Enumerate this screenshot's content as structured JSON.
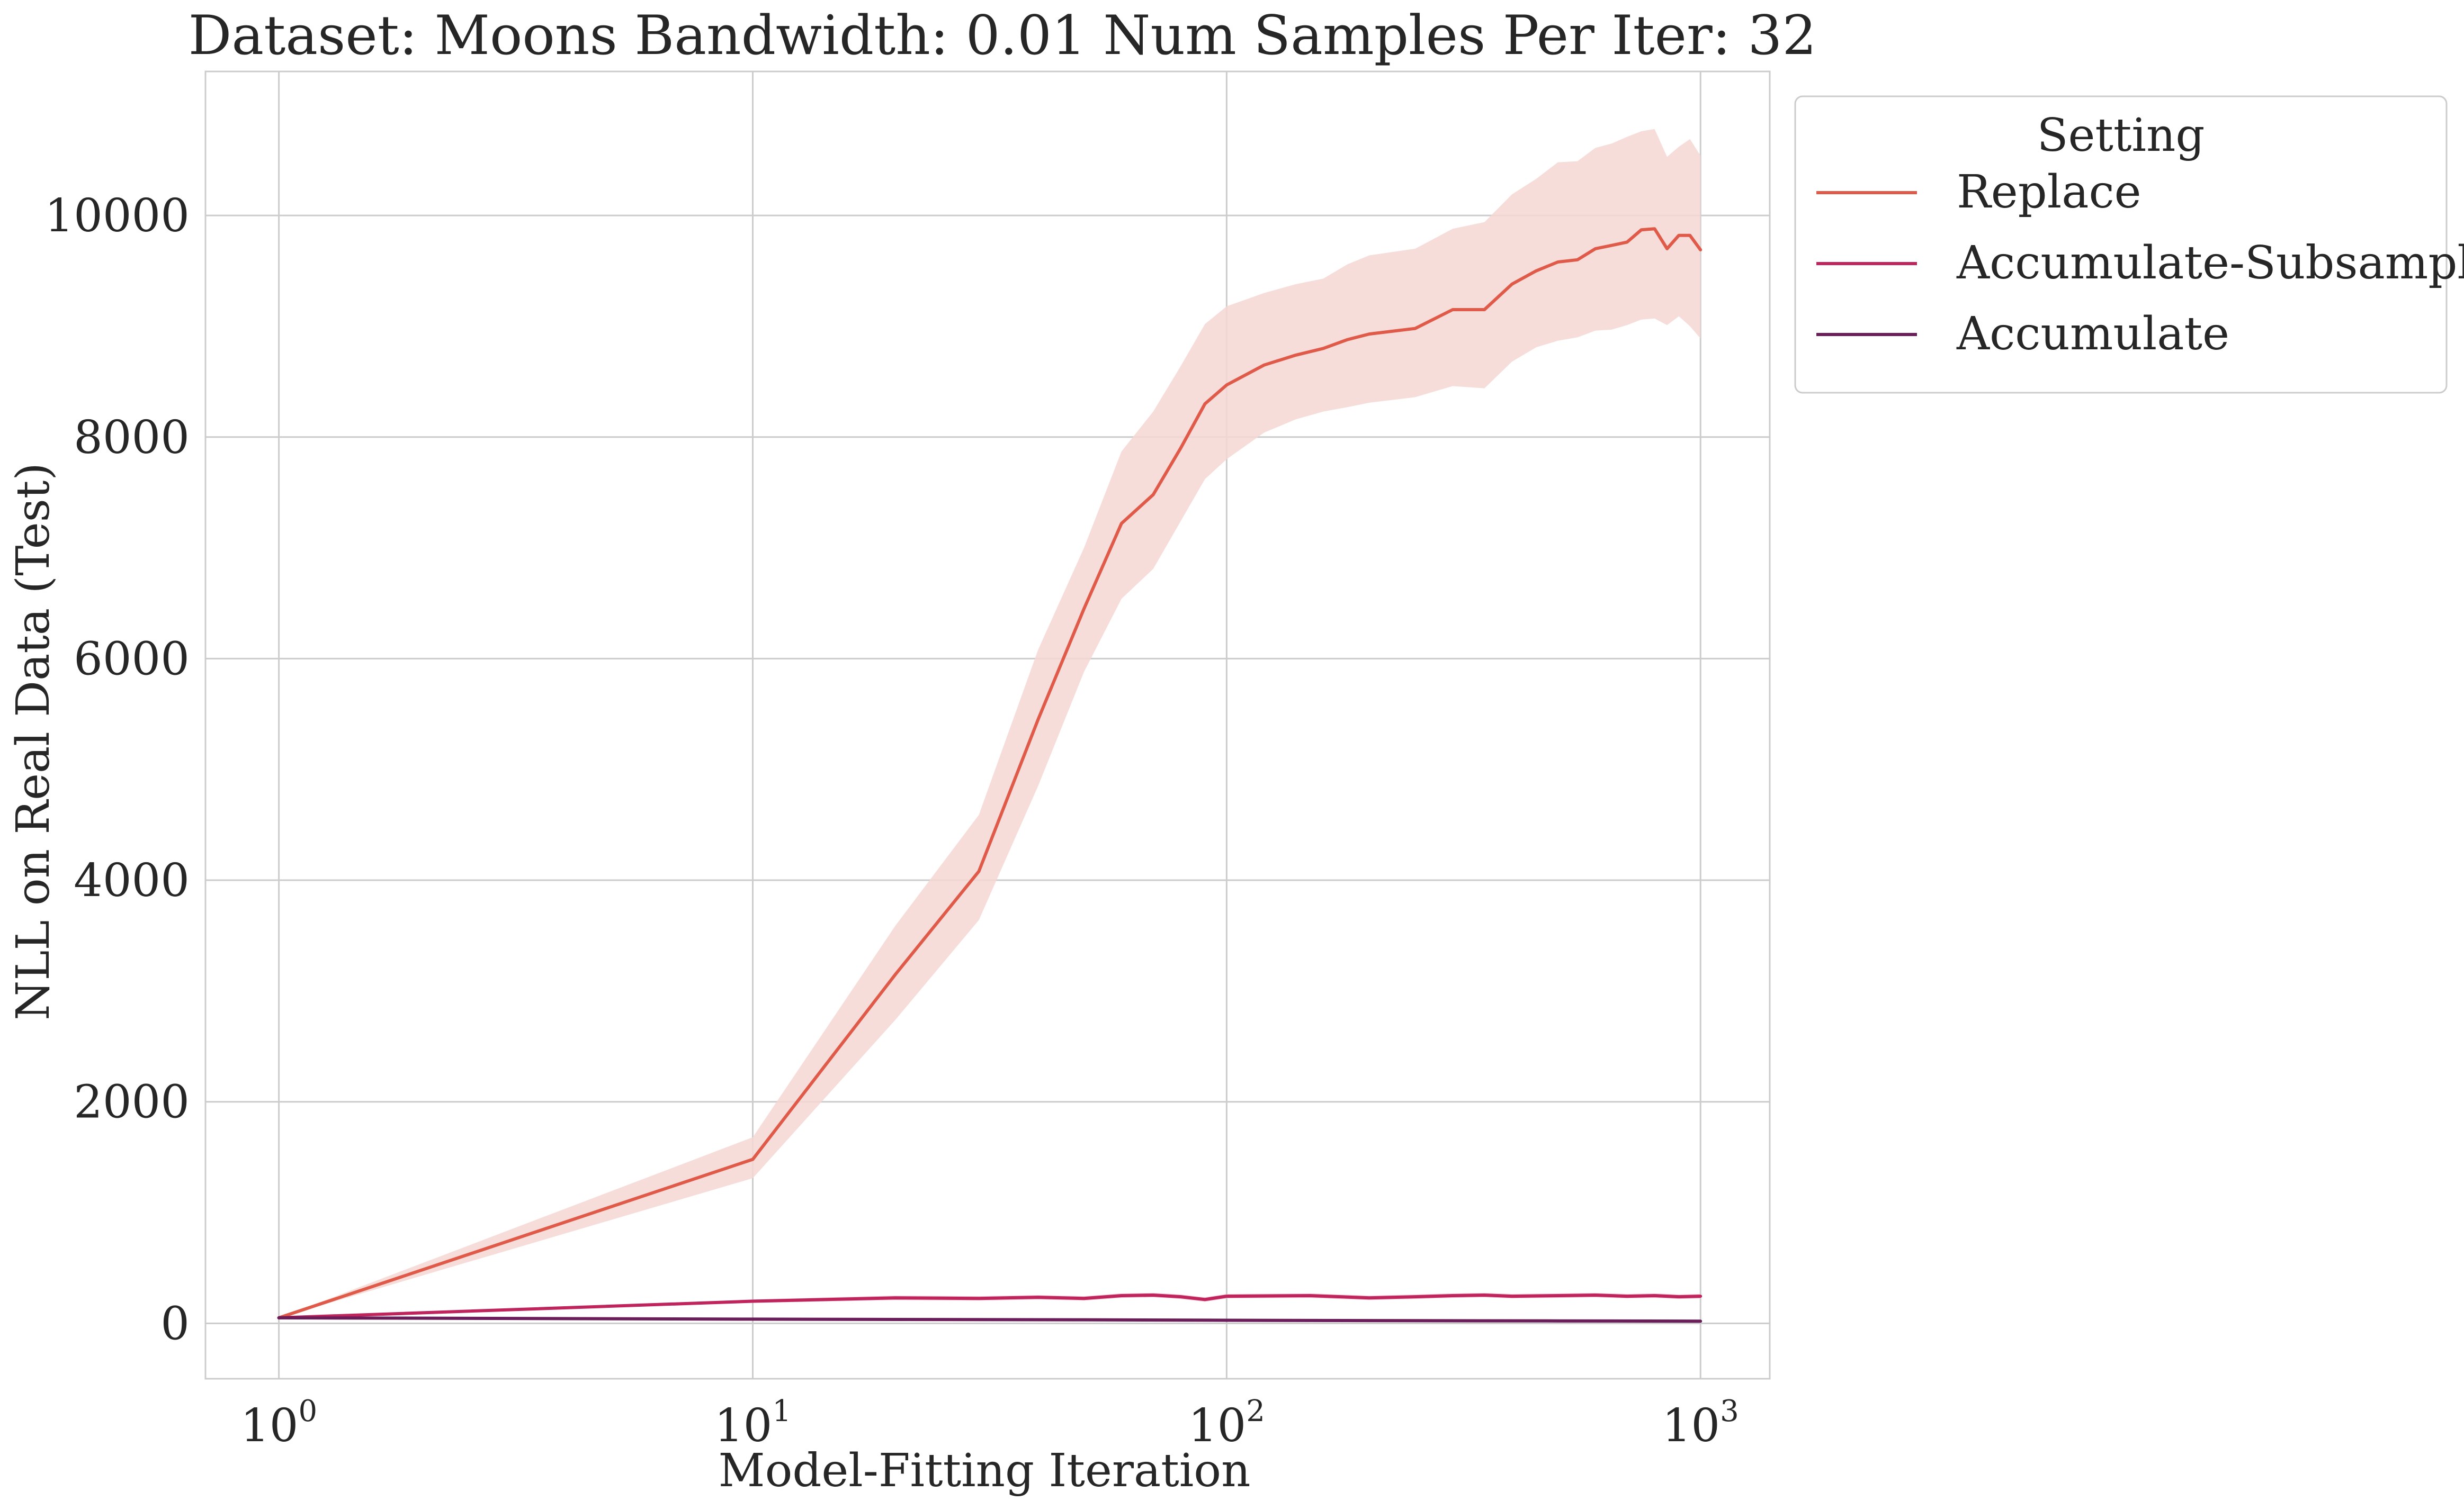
{
  "chart_data": {
    "type": "line",
    "title": "Dataset: Moons Bandwidth: 0.01 Num Samples Per Iter: 32",
    "xlabel": "Model-Fitting Iteration",
    "ylabel": "NLL on Real Data (Test)",
    "xscale": "log",
    "xlim": [
      0.7,
      1400
    ],
    "ylim": [
      -500,
      11300
    ],
    "x_ticks": [
      {
        "value": 1,
        "base": "10",
        "exp": "0"
      },
      {
        "value": 10,
        "base": "10",
        "exp": "1"
      },
      {
        "value": 100,
        "base": "10",
        "exp": "2"
      },
      {
        "value": 1000,
        "base": "10",
        "exp": "3"
      }
    ],
    "y_ticks": [
      {
        "value": 0,
        "label": "0"
      },
      {
        "value": 2000,
        "label": "2000"
      },
      {
        "value": 4000,
        "label": "4000"
      },
      {
        "value": 6000,
        "label": "6000"
      },
      {
        "value": 8000,
        "label": "8000"
      },
      {
        "value": 10000,
        "label": "10000"
      }
    ],
    "grid": true,
    "legend": {
      "title": "Setting",
      "placement": "outside upper right"
    },
    "series": [
      {
        "name": "Replace",
        "color": "#e05a4a",
        "band_color": "#f6d7d2",
        "x": [
          1,
          10,
          20,
          30,
          40,
          50,
          60,
          70,
          80,
          90,
          100,
          120,
          140,
          160,
          180,
          200,
          250,
          300,
          350,
          400,
          450,
          500,
          550,
          600,
          650,
          700,
          750,
          800,
          850,
          900,
          950,
          1000
        ],
        "y": [
          50,
          1480,
          3150,
          4080,
          5450,
          6450,
          7220,
          7480,
          7900,
          8300,
          8470,
          8650,
          8740,
          8800,
          8880,
          8930,
          8980,
          9150,
          9150,
          9380,
          9500,
          9580,
          9600,
          9700,
          9730,
          9760,
          9870,
          9880,
          9700,
          9820,
          9820,
          9690
        ],
        "lower": [
          50,
          1310,
          2740,
          3640,
          4850,
          5880,
          6540,
          6810,
          7240,
          7620,
          7800,
          8040,
          8160,
          8230,
          8270,
          8310,
          8360,
          8460,
          8440,
          8680,
          8810,
          8870,
          8900,
          8960,
          8970,
          9010,
          9060,
          9070,
          9010,
          9090,
          9000,
          8890
        ],
        "upper": [
          50,
          1680,
          3590,
          4590,
          6080,
          7000,
          7870,
          8230,
          8640,
          9020,
          9180,
          9300,
          9380,
          9430,
          9560,
          9640,
          9700,
          9880,
          9940,
          10190,
          10330,
          10480,
          10490,
          10610,
          10650,
          10710,
          10760,
          10780,
          10530,
          10620,
          10690,
          10540
        ]
      },
      {
        "name": "Accumulate-Subsample",
        "color": "#c0245c",
        "band_color": "#ecbccd",
        "x": [
          1,
          10,
          20,
          30,
          40,
          50,
          60,
          70,
          80,
          90,
          100,
          150,
          200,
          250,
          300,
          350,
          400,
          500,
          600,
          700,
          800,
          900,
          1000
        ],
        "y": [
          50,
          200,
          230,
          225,
          235,
          225,
          250,
          255,
          240,
          215,
          245,
          250,
          230,
          240,
          250,
          255,
          245,
          250,
          255,
          245,
          250,
          240,
          245
        ],
        "lower": [
          50,
          185,
          210,
          205,
          215,
          205,
          230,
          235,
          220,
          195,
          225,
          230,
          210,
          220,
          230,
          235,
          225,
          230,
          235,
          225,
          230,
          220,
          225
        ],
        "upper": [
          50,
          215,
          250,
          245,
          255,
          245,
          270,
          275,
          260,
          235,
          265,
          270,
          250,
          260,
          270,
          275,
          265,
          270,
          275,
          265,
          270,
          260,
          265
        ]
      },
      {
        "name": "Accumulate",
        "color": "#6b1d5a",
        "band_color": "#d9c2d4",
        "x": [
          1,
          10,
          20,
          50,
          100,
          200,
          500,
          1000
        ],
        "y": [
          50,
          38,
          35,
          32,
          28,
          25,
          22,
          20
        ],
        "lower": [
          50,
          33,
          30,
          27,
          23,
          20,
          17,
          15
        ],
        "upper": [
          50,
          43,
          40,
          37,
          33,
          30,
          27,
          25
        ]
      }
    ]
  }
}
